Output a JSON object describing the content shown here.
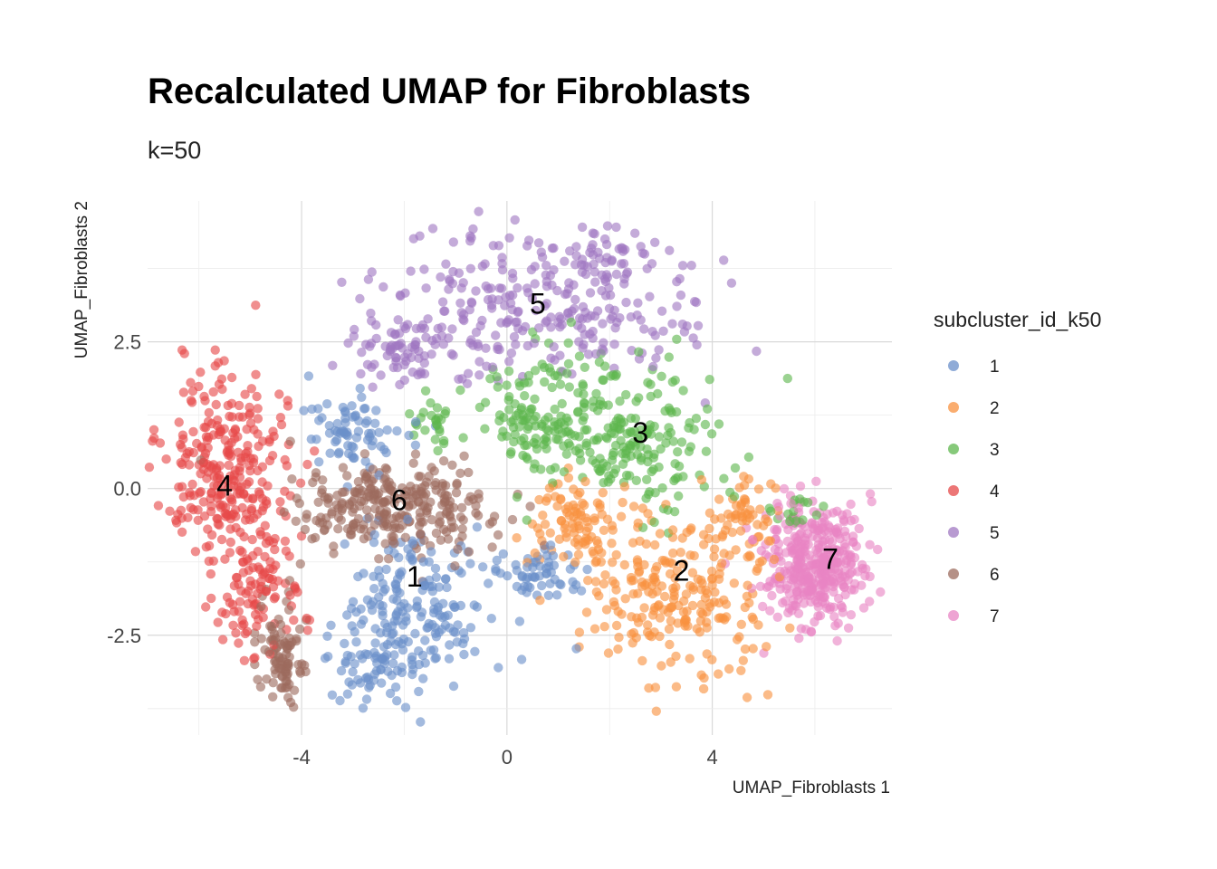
{
  "chart_data": {
    "type": "scatter",
    "title": "Recalculated UMAP for Fibroblasts",
    "subtitle": "k=50",
    "xlabel": "UMAP_Fibroblasts 1",
    "ylabel": "UMAP_Fibroblasts 2",
    "xlim": [
      -7.0,
      7.5
    ],
    "ylim": [
      -4.2,
      4.9
    ],
    "x_ticks": [
      -4,
      0,
      4
    ],
    "x_tick_labels": [
      "-4",
      "0",
      "4"
    ],
    "y_ticks": [
      -2.5,
      0.0,
      2.5
    ],
    "y_tick_labels": [
      "-2.5",
      "0.0",
      "2.5"
    ],
    "grid": true,
    "legend": {
      "title": "subcluster_id_k50",
      "position": "right"
    },
    "series": [
      {
        "name": "1",
        "color": "#6A8FC9",
        "label_pos": [
          -1.8,
          -1.5
        ],
        "blobs": [
          [
            -1.8,
            -2.0,
            1.4,
            1.3,
            0.5
          ],
          [
            -3.0,
            0.9,
            0.8,
            0.6,
            0.2
          ],
          [
            -2.6,
            -3.0,
            0.9,
            0.7,
            0.15
          ],
          [
            0.6,
            -1.5,
            0.9,
            0.4,
            0.15
          ]
        ]
      },
      {
        "name": "2",
        "color": "#F8923F",
        "label_pos": [
          3.4,
          -1.4
        ],
        "blobs": [
          [
            3.2,
            -1.9,
            1.6,
            1.3,
            0.6
          ],
          [
            1.4,
            -0.6,
            0.9,
            0.7,
            0.25
          ],
          [
            4.6,
            -0.5,
            0.6,
            0.8,
            0.15
          ]
        ]
      },
      {
        "name": "3",
        "color": "#5DB74E",
        "label_pos": [
          2.6,
          0.95
        ],
        "blobs": [
          [
            2.2,
            0.9,
            1.9,
            1.2,
            0.65
          ],
          [
            0.4,
            1.3,
            0.9,
            0.8,
            0.2
          ],
          [
            -1.3,
            1.1,
            0.5,
            0.5,
            0.07
          ],
          [
            5.6,
            -0.4,
            0.6,
            0.3,
            0.05
          ]
        ]
      },
      {
        "name": "4",
        "color": "#E64848",
        "label_pos": [
          -5.5,
          0.05
        ],
        "blobs": [
          [
            -5.4,
            0.3,
            1.1,
            1.7,
            0.75
          ],
          [
            -4.8,
            -1.8,
            0.7,
            0.9,
            0.25
          ]
        ]
      },
      {
        "name": "5",
        "color": "#A078C1",
        "label_pos": [
          0.6,
          3.15
        ],
        "blobs": [
          [
            0.5,
            3.1,
            2.9,
            1.1,
            0.75
          ],
          [
            -2.2,
            2.3,
            0.8,
            0.5,
            0.15
          ],
          [
            1.8,
            4.0,
            0.9,
            0.4,
            0.1
          ]
        ]
      },
      {
        "name": "6",
        "color": "#9C6B5E",
        "label_pos": [
          -2.1,
          -0.2
        ],
        "blobs": [
          [
            -2.2,
            -0.3,
            1.9,
            0.7,
            0.75
          ],
          [
            -4.4,
            -2.9,
            0.45,
            0.8,
            0.25
          ]
        ]
      },
      {
        "name": "7",
        "color": "#E884C4",
        "label_pos": [
          6.3,
          -1.2
        ],
        "blobs": [
          [
            6.0,
            -1.3,
            0.9,
            0.9,
            1.0
          ]
        ]
      }
    ]
  }
}
